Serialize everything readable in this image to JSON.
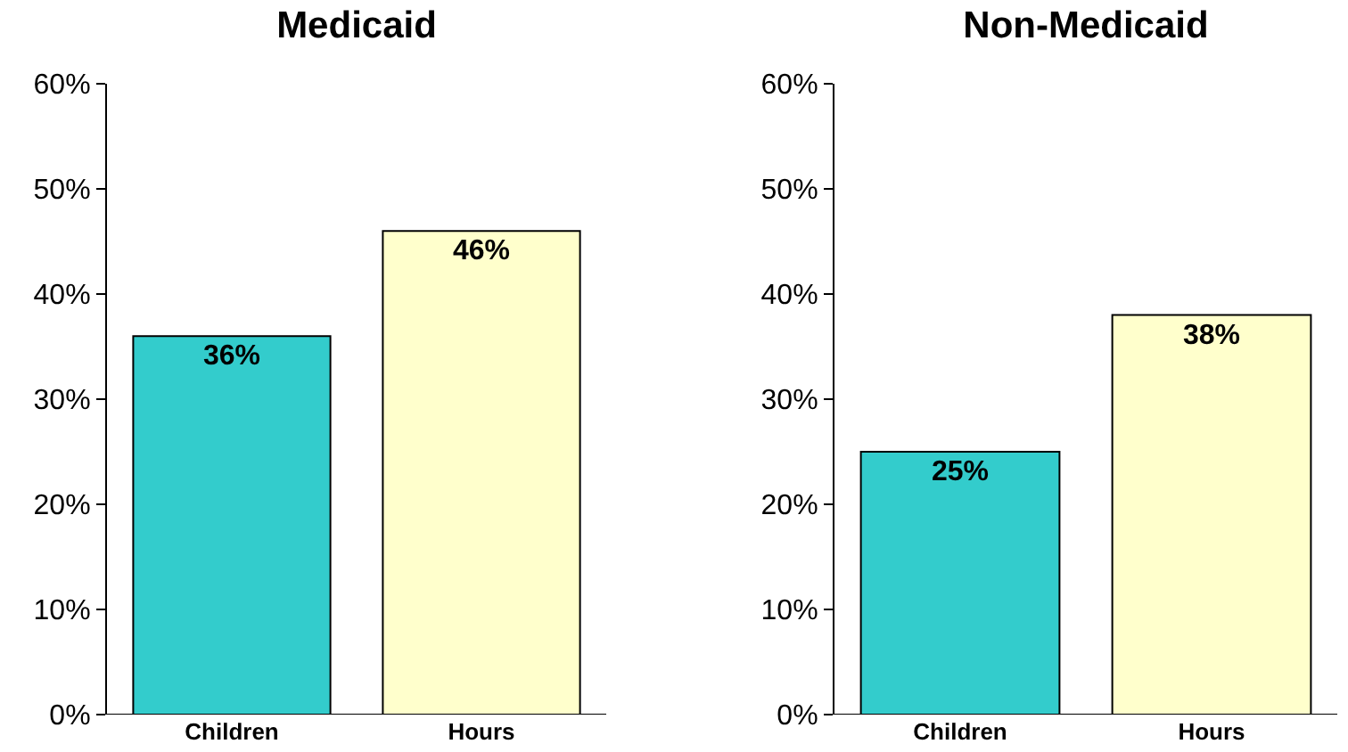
{
  "chart_data": [
    {
      "type": "bar",
      "title": "Medicaid",
      "categories": [
        "Children",
        "Hours"
      ],
      "values": [
        36,
        46
      ],
      "colors": [
        "#33cccc",
        "#ffffcc"
      ],
      "value_labels": [
        "36%",
        "46%"
      ],
      "ylim": [
        0,
        60
      ],
      "yticks": [
        {
          "value": 0,
          "label": "0%"
        },
        {
          "value": 10,
          "label": "10%"
        },
        {
          "value": 20,
          "label": "20%"
        },
        {
          "value": 30,
          "label": "30%"
        },
        {
          "value": 40,
          "label": "40%"
        },
        {
          "value": 50,
          "label": "50%"
        },
        {
          "value": 60,
          "label": "60%"
        }
      ]
    },
    {
      "type": "bar",
      "title": "Non-Medicaid",
      "categories": [
        "Children",
        "Hours"
      ],
      "values": [
        25,
        38
      ],
      "colors": [
        "#33cccc",
        "#ffffcc"
      ],
      "value_labels": [
        "25%",
        "38%"
      ],
      "ylim": [
        0,
        60
      ],
      "yticks": [
        {
          "value": 0,
          "label": "0%"
        },
        {
          "value": 10,
          "label": "10%"
        },
        {
          "value": 20,
          "label": "20%"
        },
        {
          "value": 30,
          "label": "30%"
        },
        {
          "value": 40,
          "label": "40%"
        },
        {
          "value": 50,
          "label": "50%"
        },
        {
          "value": 60,
          "label": "60%"
        }
      ]
    }
  ]
}
